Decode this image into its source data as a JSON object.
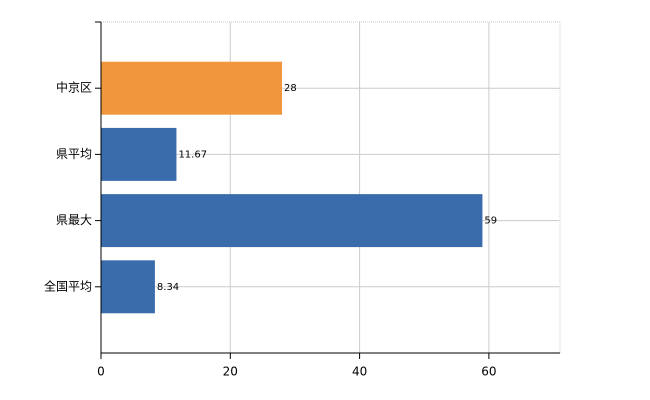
{
  "chart_data": {
    "type": "barh",
    "categories": [
      "中京区",
      "県平均",
      "県最大",
      "全国平均"
    ],
    "values": [
      28,
      11.67,
      59,
      8.34
    ],
    "colors": [
      "#f0963c",
      "#3a6cab",
      "#3a6cab",
      "#3a6cab"
    ],
    "xlim": [
      0,
      71
    ],
    "xticks": [
      0,
      20,
      40,
      60
    ],
    "grid": true
  }
}
